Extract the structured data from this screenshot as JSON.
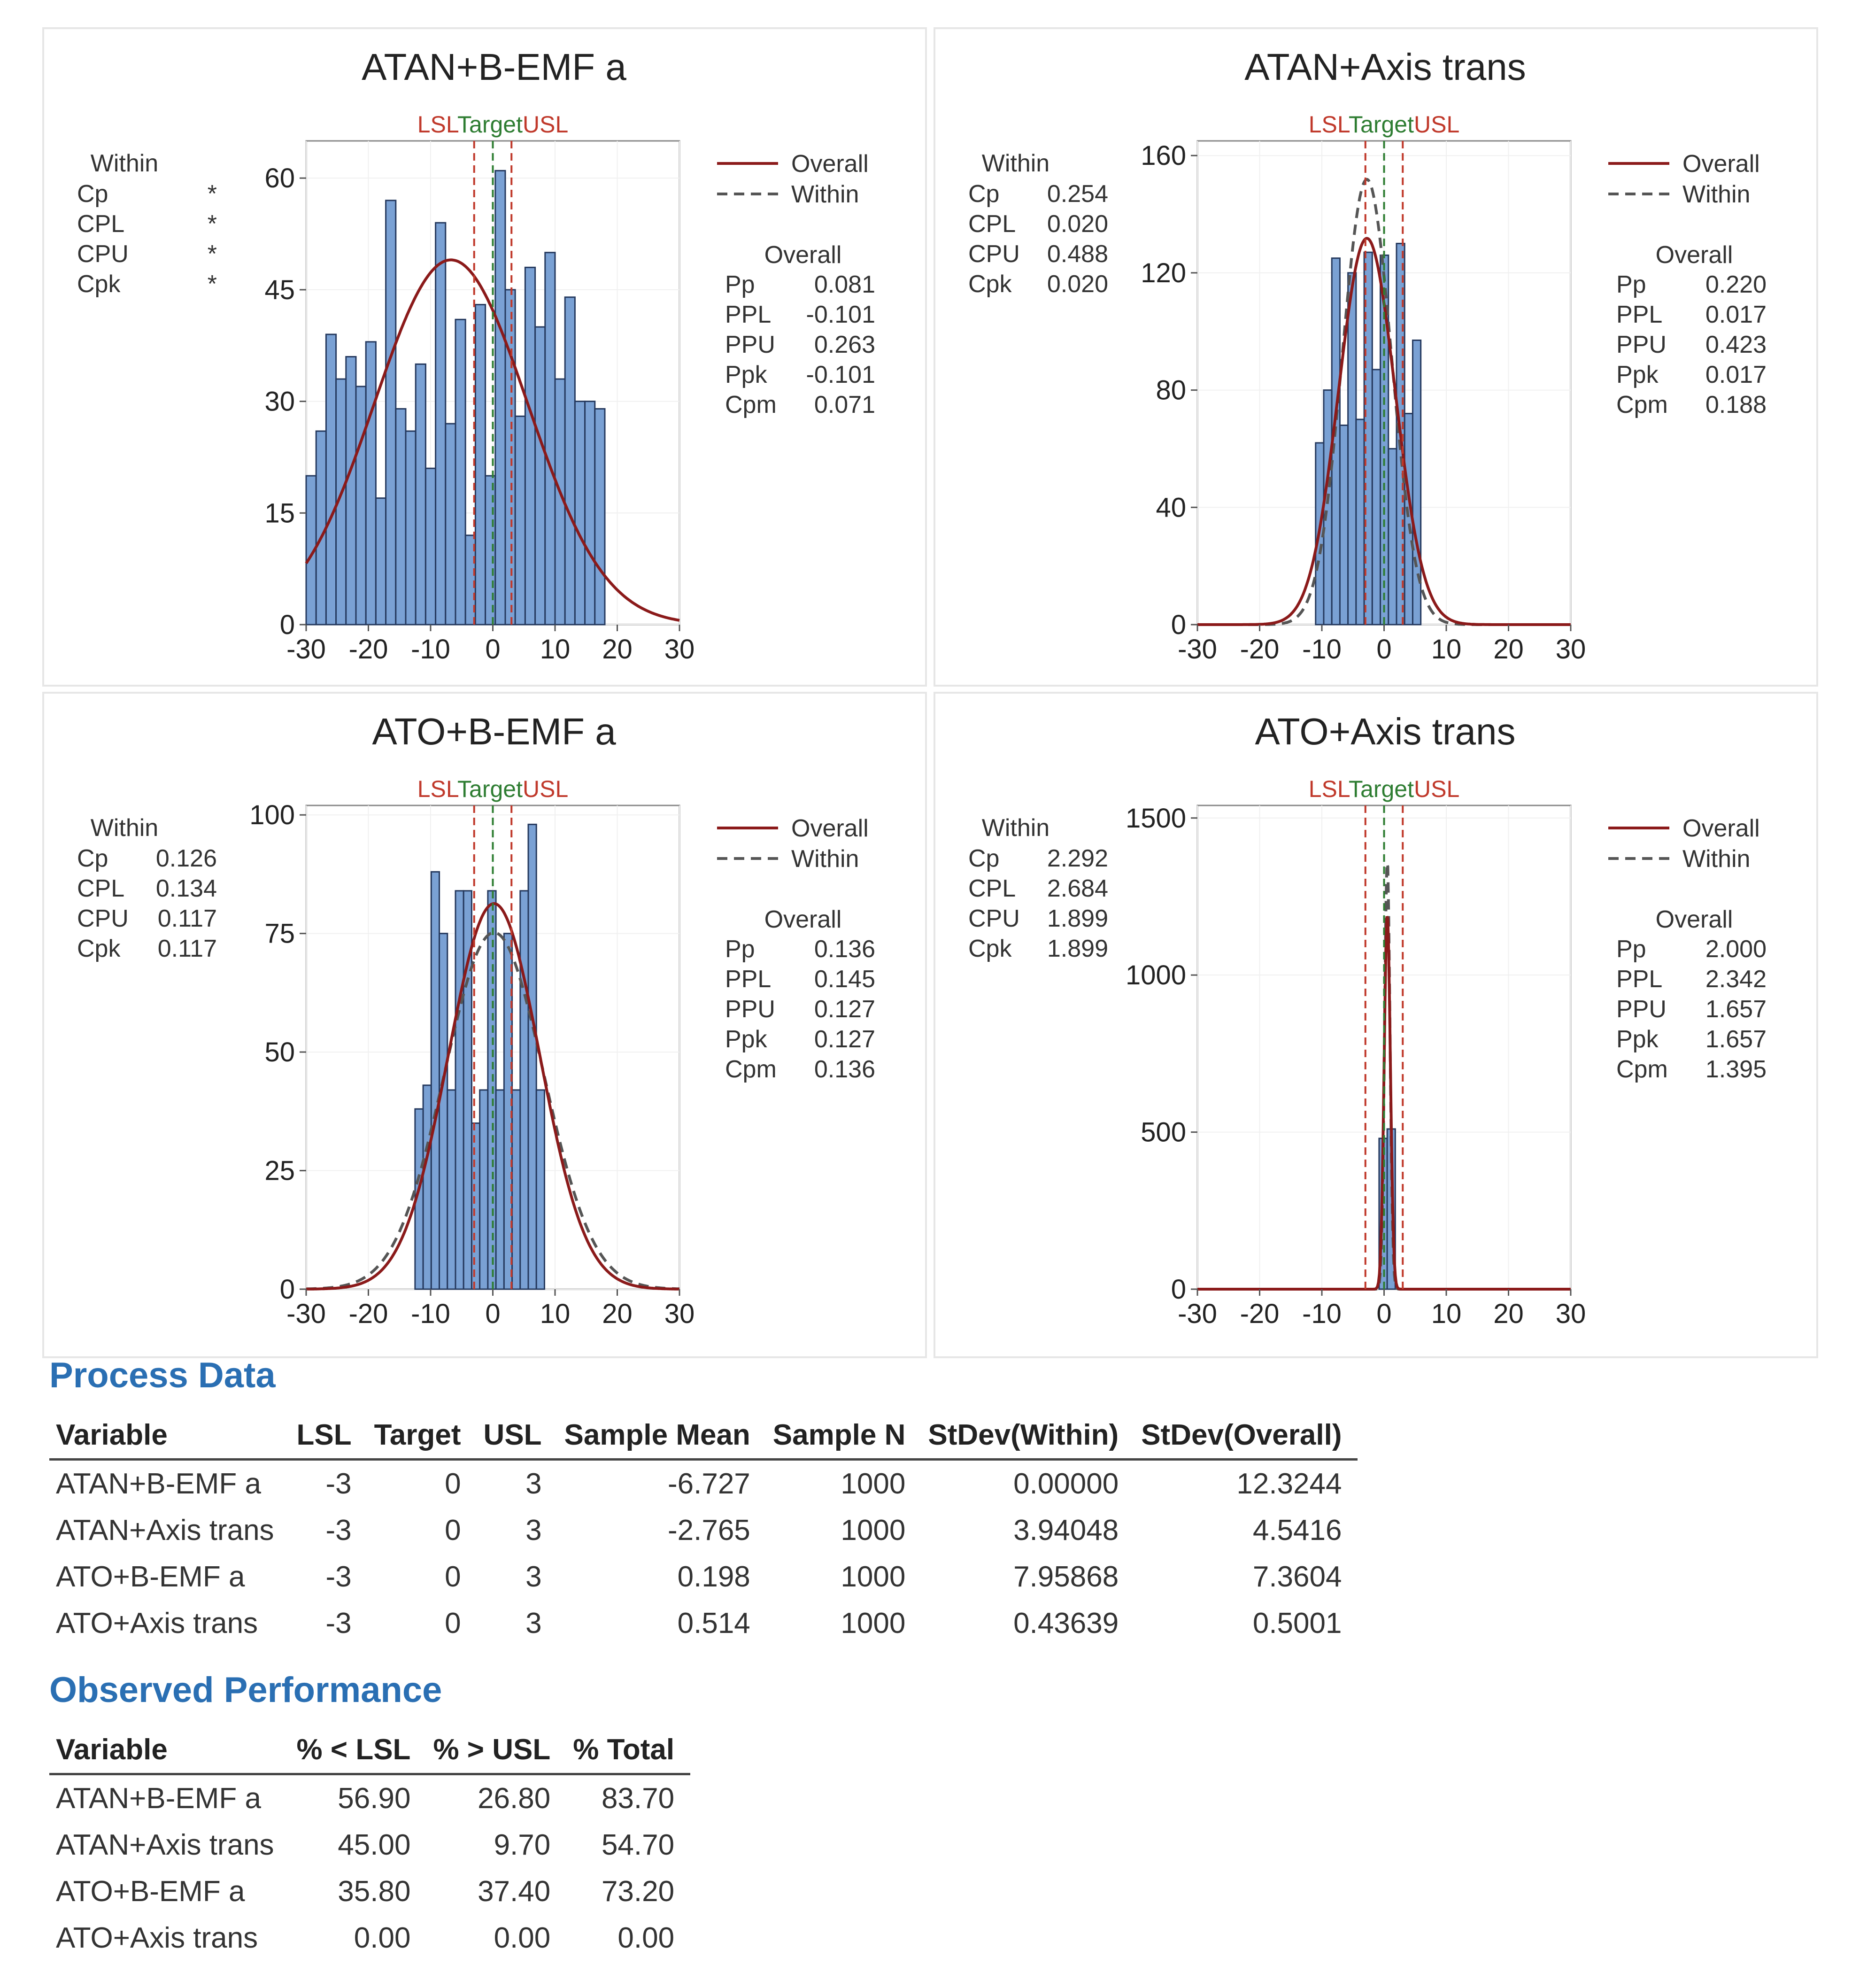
{
  "chart_data": [
    {
      "type": "bar",
      "title": "ATAN+B-EMF a",
      "spec_labels": {
        "lsl": "LSL",
        "target": "Target",
        "usl": "USL"
      },
      "lsl": -3,
      "target": 0,
      "usl": 3,
      "xlim": [
        -30,
        30
      ],
      "ylim": [
        0,
        65
      ],
      "xticks": [
        "-30",
        "-20",
        "-10",
        "0",
        "10",
        "20",
        "30"
      ],
      "yticks": [
        "0",
        "15",
        "30",
        "45",
        "60"
      ],
      "x_ticks_values": [
        -30,
        -20,
        -10,
        0,
        10,
        20,
        30
      ],
      "y_ticks_values": [
        0,
        15,
        30,
        45,
        60
      ],
      "bin_start": -30,
      "bin_width": 1.6,
      "values": [
        20,
        26,
        39,
        33,
        36,
        32,
        38,
        17,
        57,
        29,
        26,
        35,
        21,
        54,
        27,
        41,
        12,
        43,
        20,
        61,
        45,
        28,
        48,
        40,
        50,
        33,
        44,
        30,
        30,
        29
      ],
      "overall_curve": {
        "mean": -6.727,
        "sd": 12.3244,
        "scale": 1514
      },
      "legend": {
        "overall": "Overall",
        "within": "Within"
      },
      "within": {
        "heading": "Within",
        "rows": [
          {
            "label": "Cp",
            "value": "*"
          },
          {
            "label": "CPL",
            "value": "*"
          },
          {
            "label": "CPU",
            "value": "*"
          },
          {
            "label": "Cpk",
            "value": "*"
          }
        ]
      },
      "overall": {
        "heading": "Overall",
        "rows": [
          {
            "label": "Pp",
            "value": "0.081"
          },
          {
            "label": "PPL",
            "value": "-0.101"
          },
          {
            "label": "PPU",
            "value": "0.263"
          },
          {
            "label": "Ppk",
            "value": "-0.101"
          },
          {
            "label": "Cpm",
            "value": "0.071"
          }
        ]
      }
    },
    {
      "type": "bar",
      "title": "ATAN+Axis trans",
      "spec_labels": {
        "lsl": "LSL",
        "target": "Target",
        "usl": "USL"
      },
      "lsl": -3,
      "target": 0,
      "usl": 3,
      "xlim": [
        -30,
        30
      ],
      "ylim": [
        0,
        165
      ],
      "xticks": [
        "-30",
        "-20",
        "-10",
        "0",
        "10",
        "20",
        "30"
      ],
      "yticks": [
        "0",
        "40",
        "80",
        "120",
        "160"
      ],
      "x_ticks_values": [
        -30,
        -20,
        -10,
        0,
        10,
        20,
        30
      ],
      "y_ticks_values": [
        0,
        40,
        80,
        120,
        160
      ],
      "bin_start": -11,
      "bin_width": 1.3,
      "values": [
        62,
        80,
        125,
        68,
        120,
        70,
        127,
        87,
        126,
        60,
        130,
        72,
        97
      ],
      "overall_curve": {
        "mean": -2.765,
        "sd": 4.5416,
        "scale": 1500
      },
      "within_curve": {
        "mean": -2.765,
        "sd": 3.94048,
        "scale": 1500
      },
      "legend": {
        "overall": "Overall",
        "within": "Within"
      },
      "within": {
        "heading": "Within",
        "rows": [
          {
            "label": "Cp",
            "value": "0.254"
          },
          {
            "label": "CPL",
            "value": "0.020"
          },
          {
            "label": "CPU",
            "value": "0.488"
          },
          {
            "label": "Cpk",
            "value": "0.020"
          }
        ]
      },
      "overall": {
        "heading": "Overall",
        "rows": [
          {
            "label": "Pp",
            "value": "0.220"
          },
          {
            "label": "PPL",
            "value": "0.017"
          },
          {
            "label": "PPU",
            "value": "0.423"
          },
          {
            "label": "Ppk",
            "value": "0.017"
          },
          {
            "label": "Cpm",
            "value": "0.188"
          }
        ]
      }
    },
    {
      "type": "bar",
      "title": "ATO+B-EMF a",
      "spec_labels": {
        "lsl": "LSL",
        "target": "Target",
        "usl": "USL"
      },
      "lsl": -3,
      "target": 0,
      "usl": 3,
      "xlim": [
        -30,
        30
      ],
      "ylim": [
        0,
        102
      ],
      "xticks": [
        "-30",
        "-20",
        "-10",
        "0",
        "10",
        "20",
        "30"
      ],
      "yticks": [
        "0",
        "25",
        "50",
        "75",
        "100"
      ],
      "x_ticks_values": [
        -30,
        -20,
        -10,
        0,
        10,
        20,
        30
      ],
      "y_ticks_values": [
        0,
        25,
        50,
        75,
        100
      ],
      "bin_start": -12.5,
      "bin_width": 1.3,
      "values": [
        38,
        43,
        88,
        75,
        42,
        84,
        84,
        35,
        42,
        84,
        42,
        75,
        42,
        84,
        98,
        42
      ],
      "overall_curve": {
        "mean": 0.198,
        "sd": 7.3604,
        "scale": 1500
      },
      "within_curve": {
        "mean": 0.198,
        "sd": 7.95868,
        "scale": 1500
      },
      "legend": {
        "overall": "Overall",
        "within": "Within"
      },
      "within": {
        "heading": "Within",
        "rows": [
          {
            "label": "Cp",
            "value": "0.126"
          },
          {
            "label": "CPL",
            "value": "0.134"
          },
          {
            "label": "CPU",
            "value": "0.117"
          },
          {
            "label": "Cpk",
            "value": "0.117"
          }
        ]
      },
      "overall": {
        "heading": "Overall",
        "rows": [
          {
            "label": "Pp",
            "value": "0.136"
          },
          {
            "label": "PPL",
            "value": "0.145"
          },
          {
            "label": "PPU",
            "value": "0.127"
          },
          {
            "label": "Ppk",
            "value": "0.127"
          },
          {
            "label": "Cpm",
            "value": "0.136"
          }
        ]
      }
    },
    {
      "type": "bar",
      "title": "ATO+Axis trans",
      "spec_labels": {
        "lsl": "LSL",
        "target": "Target",
        "usl": "USL"
      },
      "lsl": -3,
      "target": 0,
      "usl": 3,
      "xlim": [
        -30,
        30
      ],
      "ylim": [
        0,
        1540
      ],
      "xticks": [
        "-30",
        "-20",
        "-10",
        "0",
        "10",
        "20",
        "30"
      ],
      "yticks": [
        "0",
        "500",
        "1000",
        "1500"
      ],
      "x_ticks_values": [
        -30,
        -20,
        -10,
        0,
        10,
        20,
        30
      ],
      "y_ticks_values": [
        0,
        500,
        1000,
        1500
      ],
      "bin_start": -0.8,
      "bin_width": 1.3,
      "values": [
        480,
        510
      ],
      "overall_curve": {
        "mean": 0.514,
        "sd": 0.5001,
        "scale": 1500
      },
      "within_curve": {
        "mean": 0.514,
        "sd": 0.43639,
        "scale": 1500
      },
      "legend": {
        "overall": "Overall",
        "within": "Within"
      },
      "within": {
        "heading": "Within",
        "rows": [
          {
            "label": "Cp",
            "value": "2.292"
          },
          {
            "label": "CPL",
            "value": "2.684"
          },
          {
            "label": "CPU",
            "value": "1.899"
          },
          {
            "label": "Cpk",
            "value": "1.899"
          }
        ]
      },
      "overall": {
        "heading": "Overall",
        "rows": [
          {
            "label": "Pp",
            "value": "2.000"
          },
          {
            "label": "PPL",
            "value": "2.342"
          },
          {
            "label": "PPU",
            "value": "1.657"
          },
          {
            "label": "Ppk",
            "value": "1.657"
          },
          {
            "label": "Cpm",
            "value": "1.395"
          }
        ]
      }
    }
  ],
  "colors": {
    "bar": "#7aa1d4",
    "bar_edge": "#25395e",
    "overall": "#8b1a1a",
    "within": "#555555",
    "spec": "#c0392b",
    "target": "#2e7d32",
    "title_blue": "#2a6fb3"
  },
  "process_data": {
    "title": "Process Data",
    "headers": [
      "Variable",
      "LSL",
      "Target",
      "USL",
      "Sample Mean",
      "Sample N",
      "StDev(Within)",
      "StDev(Overall)"
    ],
    "rows": [
      [
        "ATAN+B-EMF a",
        "-3",
        "0",
        "3",
        "-6.727",
        "1000",
        "0.00000",
        "12.3244"
      ],
      [
        "ATAN+Axis trans",
        "-3",
        "0",
        "3",
        "-2.765",
        "1000",
        "3.94048",
        "4.5416"
      ],
      [
        "ATO+B-EMF a",
        "-3",
        "0",
        "3",
        "0.198",
        "1000",
        "7.95868",
        "7.3604"
      ],
      [
        "ATO+Axis trans",
        "-3",
        "0",
        "3",
        "0.514",
        "1000",
        "0.43639",
        "0.5001"
      ]
    ]
  },
  "observed_performance": {
    "title": "Observed Performance",
    "headers": [
      "Variable",
      "% < LSL",
      "% > USL",
      "% Total"
    ],
    "rows": [
      [
        "ATAN+B-EMF a",
        "56.90",
        "26.80",
        "83.70"
      ],
      [
        "ATAN+Axis trans",
        "45.00",
        "9.70",
        "54.70"
      ],
      [
        "ATO+B-EMF a",
        "35.80",
        "37.40",
        "73.20"
      ],
      [
        "ATO+Axis trans",
        "0.00",
        "0.00",
        "0.00"
      ]
    ]
  }
}
